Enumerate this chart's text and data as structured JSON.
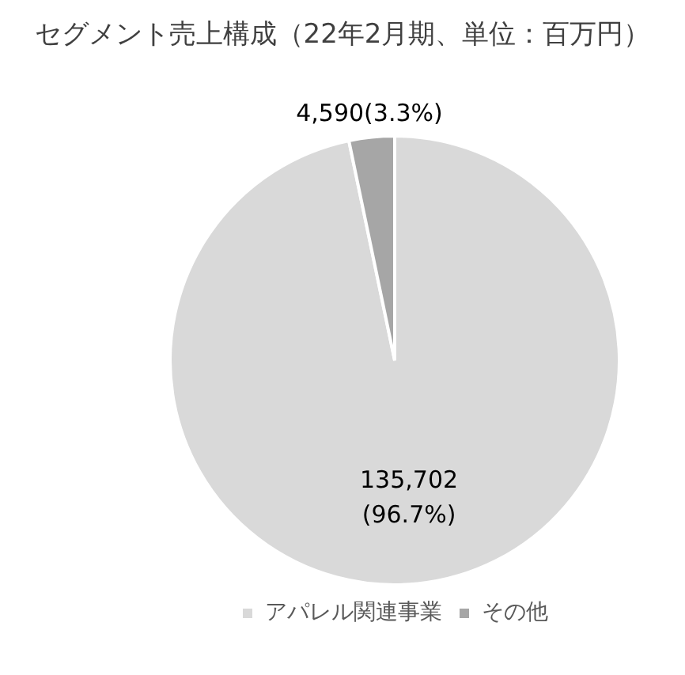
{
  "chart_data": {
    "type": "pie",
    "title": "セグメント売上構成（22年2月期、単位：百万円）",
    "categories": [
      "アパレル関連事業",
      "その他"
    ],
    "values": [
      135702,
      4590
    ],
    "colors": [
      "#d9d9d9",
      "#a6a6a6"
    ],
    "value_labels": [
      "135,702\n(96.7%)",
      "4,590(3.3%)"
    ],
    "legend": "bottom"
  }
}
